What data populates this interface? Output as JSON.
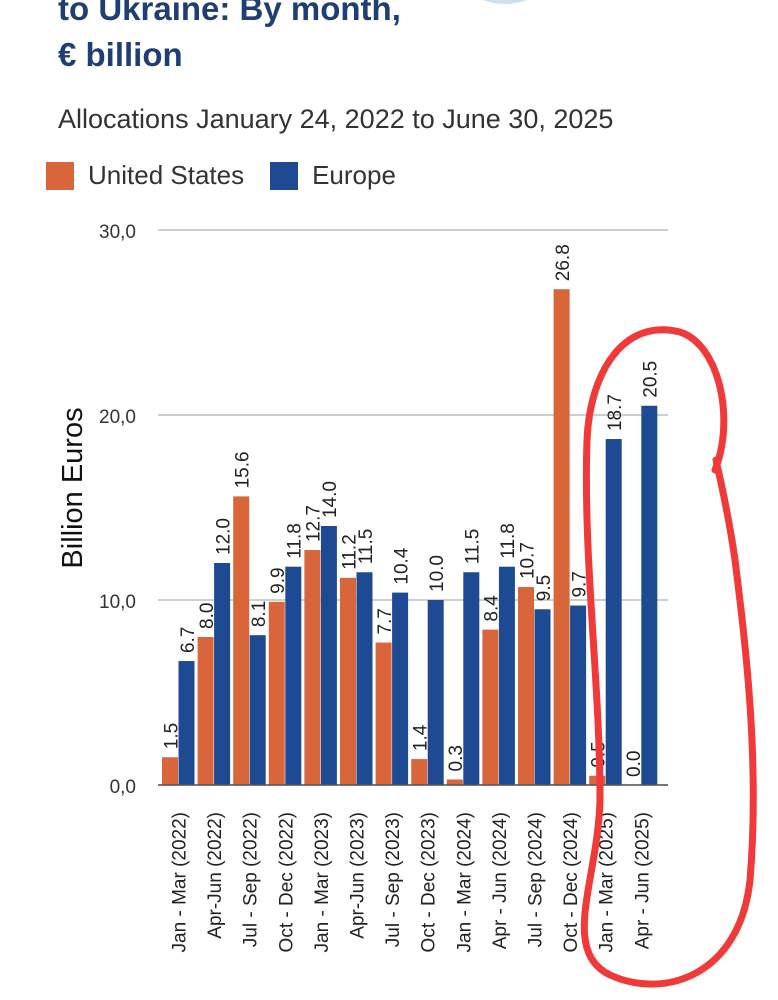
{
  "header": {
    "title_line1": "to Ukraine: By month,",
    "title_line2": "€ billion",
    "subtitle": "Allocations January 24, 2022 to June 30, 2025"
  },
  "colors": {
    "us": "#d9653b",
    "europe": "#1d4a93",
    "title": "#1f3e73",
    "annotation": "#f03a3a",
    "grid": "#bdbdbd"
  },
  "chart_data": {
    "type": "bar",
    "title": "",
    "xlabel": "",
    "ylabel": "Billion Euros",
    "ylim": [
      0,
      30
    ],
    "yticks": [
      "0,0",
      "10,0",
      "20,0",
      "30,0"
    ],
    "ytick_values": [
      0,
      10,
      20,
      30
    ],
    "grid": true,
    "legend_position": "top-left",
    "categories": [
      "Jan - Mar (2022)",
      "Apr-Jun (2022)",
      "Jul - Sep (2022)",
      "Oct - Dec (2022)",
      "Jan - Mar (2023)",
      "Apr-Jun (2023)",
      "Jul - Sep (2023)",
      "Oct - Dec (2023)",
      "Jan - Mar (2024)",
      "Apr - Jun (2024)",
      "Jul - Sep (2024)",
      "Oct - Dec (2024)",
      "Jan - Mar (2025)",
      "Apr - Jun (2025)"
    ],
    "series": [
      {
        "name": "United States",
        "values": [
          1.5,
          8.0,
          15.6,
          9.9,
          12.7,
          11.2,
          7.7,
          1.4,
          0.3,
          8.4,
          10.7,
          26.8,
          0.5,
          0.0
        ],
        "labels": [
          "1.5",
          "8.0",
          "15.6",
          "9.9",
          "12.7",
          "11.2",
          "7.7",
          "1.4",
          "0.3",
          "8.4",
          "10.7",
          "26.8",
          "0.5",
          "0.0"
        ]
      },
      {
        "name": "Europe",
        "values": [
          6.7,
          12.0,
          8.1,
          11.8,
          14.0,
          11.5,
          10.4,
          10.0,
          11.5,
          11.8,
          9.5,
          9.7,
          18.7,
          20.5
        ],
        "labels": [
          "6.7",
          "12.0",
          "8.1",
          "11.8",
          "14.0",
          "11.5",
          "10.4",
          "10.0",
          "11.5",
          "11.8",
          "9.5",
          "9.7",
          "18.7",
          "20.5"
        ]
      }
    ]
  }
}
